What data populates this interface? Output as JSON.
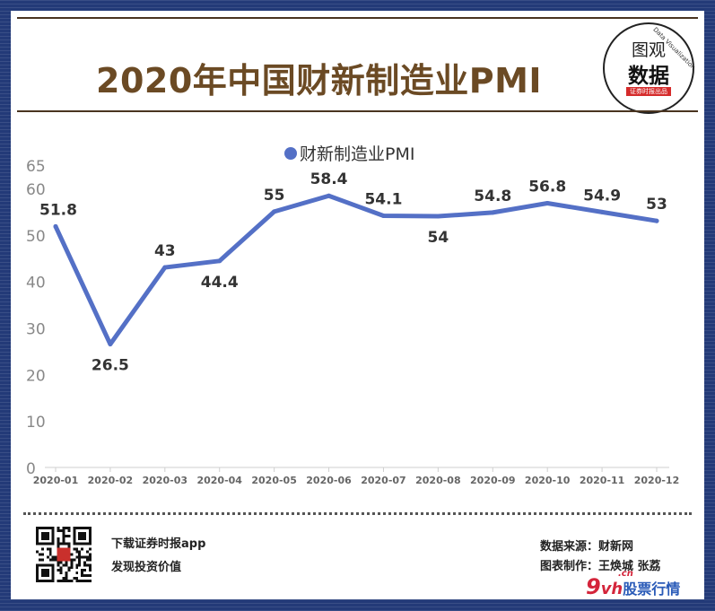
{
  "header": {
    "title": "2020年中国财新制造业PMI",
    "badge": {
      "line1": "图观",
      "line2": "数据",
      "tag": "证券时报出品",
      "arc": "Data Visualization"
    }
  },
  "chart_data": {
    "type": "line",
    "legend": "财新制造业PMI",
    "legend_position": "top",
    "categories": [
      "2020-01",
      "2020-02",
      "2020-03",
      "2020-04",
      "2020-05",
      "2020-06",
      "2020-07",
      "2020-08",
      "2020-09",
      "2020-10",
      "2020-11",
      "2020-12"
    ],
    "series": [
      {
        "name": "财新制造业PMI",
        "values": [
          51.8,
          26.5,
          43,
          44.4,
          55,
          58.4,
          54.1,
          54,
          54.8,
          56.8,
          54.9,
          53
        ],
        "color": "#5470c6"
      }
    ],
    "yticks": [
      "0",
      "10",
      "20",
      "30",
      "40",
      "50",
      "60",
      "65"
    ],
    "ylim": [
      0,
      65
    ],
    "grid": false
  },
  "footer": {
    "app_line1": "下载证券时报app",
    "app_line2": "发现投资价值",
    "source": "数据来源：财新网",
    "author": "图表制作：王焕城 张荔",
    "logo": {
      "num": "9",
      "letters": "vh",
      "domain": ".cn",
      "text": "股票行情"
    }
  },
  "colors": {
    "background": "#233a78",
    "title": "#6b4a24",
    "line": "#5470c6",
    "logo_red": "#d4253b",
    "logo_blue": "#2a5bb8"
  }
}
